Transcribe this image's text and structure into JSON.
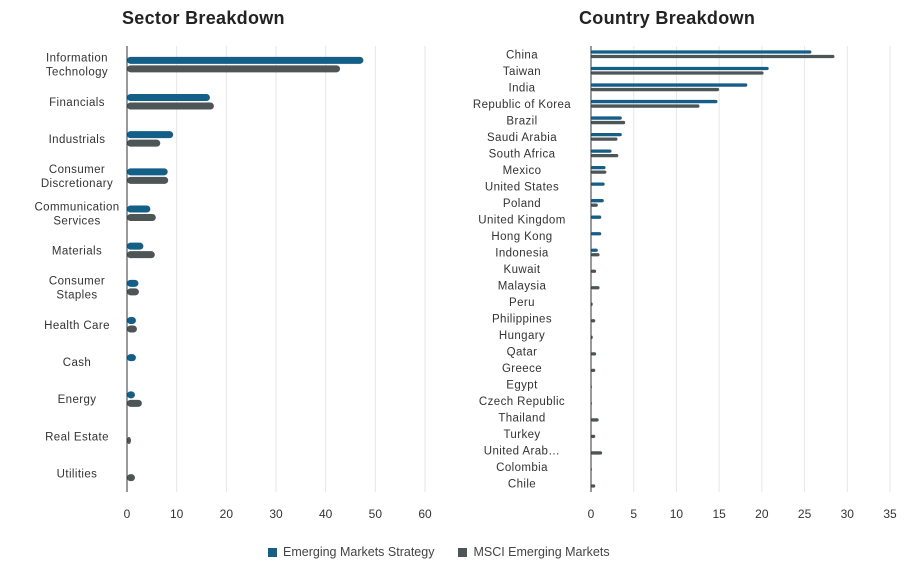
{
  "colors": {
    "strategy": "#135f88",
    "benchmark": "#4d5557",
    "grid": "#e6e6e6",
    "axis": "#333333"
  },
  "legend": {
    "strategy_label": "Emerging Markets Strategy",
    "benchmark_label": "MSCI Emerging Markets"
  },
  "chart_data": [
    {
      "type": "bar",
      "orientation": "horizontal",
      "title": "Sector Breakdown",
      "xlim": [
        0,
        60
      ],
      "xticks": [
        0,
        10,
        20,
        30,
        40,
        50,
        60
      ],
      "grid": true,
      "legend_position": "bottom",
      "categories": [
        [
          "Information",
          "Technology"
        ],
        [
          "Financials"
        ],
        [
          "Industrials"
        ],
        [
          "Consumer",
          "Discretionary"
        ],
        [
          "Communication",
          "Services"
        ],
        [
          "Materials"
        ],
        [
          "Consumer",
          "Staples"
        ],
        [
          "Health Care"
        ],
        [
          "Cash"
        ],
        [
          "Energy"
        ],
        [
          "Real Estate"
        ],
        [
          "Utilities"
        ]
      ],
      "series": [
        {
          "name": "Emerging Markets Strategy",
          "values": [
            47.6,
            16.7,
            9.3,
            8.2,
            4.7,
            3.3,
            2.3,
            1.8,
            1.8,
            1.6,
            0.0,
            0.0
          ]
        },
        {
          "name": "MSCI Emerging Markets",
          "values": [
            42.9,
            17.5,
            6.7,
            8.3,
            5.8,
            5.6,
            2.4,
            2.0,
            0.0,
            3.0,
            0.8,
            1.6
          ]
        }
      ]
    },
    {
      "type": "bar",
      "orientation": "horizontal",
      "title": "Country Breakdown",
      "xlim": [
        0,
        35
      ],
      "xticks": [
        0,
        5,
        10,
        15,
        20,
        25,
        30,
        35
      ],
      "grid": true,
      "legend_position": "bottom",
      "categories": [
        [
          "China"
        ],
        [
          "Taiwan"
        ],
        [
          "India"
        ],
        [
          "Republic of Korea"
        ],
        [
          "Brazil"
        ],
        [
          "Saudi Arabia"
        ],
        [
          "South Africa"
        ],
        [
          "Mexico"
        ],
        [
          "United States"
        ],
        [
          "Poland"
        ],
        [
          "United Kingdom"
        ],
        [
          "Hong Kong"
        ],
        [
          "Indonesia"
        ],
        [
          "Kuwait"
        ],
        [
          "Malaysia"
        ],
        [
          "Peru"
        ],
        [
          "Philippines"
        ],
        [
          "Hungary"
        ],
        [
          "Qatar"
        ],
        [
          "Greece"
        ],
        [
          "Egypt"
        ],
        [
          "Czech Republic"
        ],
        [
          "Thailand"
        ],
        [
          "Turkey"
        ],
        [
          "United Arab…"
        ],
        [
          "Colombia"
        ],
        [
          "Chile"
        ]
      ],
      "series": [
        {
          "name": "Emerging Markets Strategy",
          "values": [
            25.8,
            20.8,
            18.3,
            14.8,
            3.6,
            3.6,
            2.4,
            1.7,
            1.6,
            1.5,
            1.2,
            1.2,
            0.8,
            0.0,
            0.0,
            0.0,
            0.0,
            0.0,
            0.0,
            0.0,
            0.0,
            0.0,
            0.0,
            0.0,
            0.0,
            0.0,
            0.0
          ]
        },
        {
          "name": "MSCI Emerging Markets",
          "values": [
            28.5,
            20.2,
            15.0,
            12.7,
            4.0,
            3.1,
            3.2,
            1.8,
            0.0,
            0.8,
            0.0,
            0.0,
            1.0,
            0.6,
            1.0,
            0.2,
            0.5,
            0.2,
            0.6,
            0.5,
            0.1,
            0.1,
            0.9,
            0.5,
            1.3,
            0.1,
            0.5
          ]
        }
      ]
    }
  ]
}
